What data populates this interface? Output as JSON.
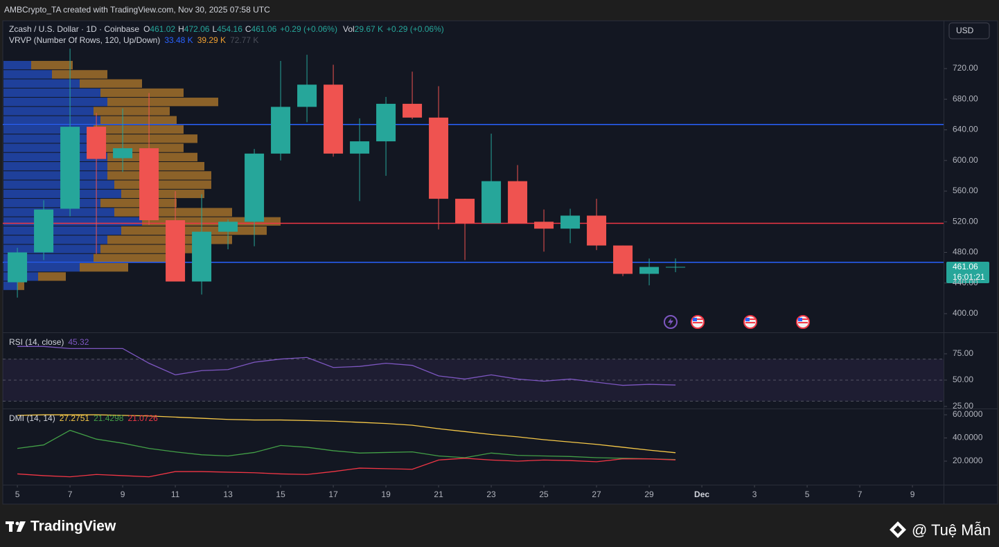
{
  "header": "AMBCrypto_TA created with TradingView.com, Nov 30, 2025 07:58 UTC",
  "footer": {
    "brand": "TradingView",
    "watermark": "@ Tuệ Mẫn"
  },
  "chart_data": [
    {
      "type": "candlestick",
      "title": "Zcash / U.S. Dollar · 1D · Coinbase",
      "currency": "USD",
      "legend": {
        "open_label": "O",
        "high_label": "H",
        "low_label": "L",
        "close_label": "C",
        "change": "+0.29 (+0.06%)",
        "volume_label": "Vol",
        "volume": "29.67 K",
        "volume_change": "+0.29 (+0.06%)"
      },
      "x": [
        5,
        6,
        7,
        8,
        9,
        10,
        11,
        12,
        13,
        14,
        15,
        16,
        17,
        18,
        19,
        20,
        21,
        22,
        23,
        24,
        25,
        26,
        27,
        28,
        29,
        30
      ],
      "open": [
        441,
        480,
        537,
        644,
        603,
        616,
        522,
        442,
        507,
        520,
        609,
        670,
        699,
        609,
        625,
        674,
        656,
        550,
        518,
        573,
        520,
        511,
        528,
        489,
        452,
        461.02
      ],
      "high": [
        486,
        548,
        746,
        662,
        668,
        688,
        560,
        556,
        523,
        615,
        730,
        738,
        725,
        655,
        683,
        716,
        697,
        550,
        635,
        594,
        536,
        537,
        550,
        489,
        472,
        472.06
      ],
      "low": [
        421,
        470,
        527,
        478,
        585,
        516,
        442,
        425,
        484,
        488,
        600,
        650,
        605,
        547,
        580,
        654,
        510,
        470,
        518,
        518,
        481,
        492,
        483,
        449,
        437,
        454.16
      ],
      "close": [
        480,
        536,
        644,
        602,
        616,
        522,
        442,
        507,
        520,
        609,
        670,
        699,
        609,
        625,
        674,
        656,
        550,
        518,
        573,
        518,
        511,
        528,
        489,
        452,
        461,
        461.06
      ],
      "up_color": "#26a69a",
      "down_color": "#ef5350",
      "xlim": [
        4.34,
        40.13
      ],
      "xticks": [
        5,
        7,
        9,
        11,
        13,
        15,
        17,
        19,
        21,
        23,
        25,
        27,
        29,
        {
          "value": 31,
          "label": "Dec"
        },
        {
          "value": 33,
          "label": "3"
        },
        {
          "value": 35,
          "label": "5"
        },
        {
          "value": 37,
          "label": "7"
        },
        {
          "value": 39,
          "label": "9"
        }
      ],
      "ylim": [
        375.6,
        782.4
      ],
      "yticks": [
        {
          "value": 400,
          "label": "400.00"
        },
        {
          "value": 440,
          "label": "440.00"
        },
        {
          "value": 480,
          "label": "480.00"
        },
        {
          "value": 520,
          "label": "520.00"
        },
        {
          "value": 560,
          "label": "560.00"
        },
        {
          "value": 600,
          "label": "600.00"
        },
        {
          "value": 640,
          "label": "640.00"
        },
        {
          "value": 680,
          "label": "680.00"
        },
        {
          "value": 720,
          "label": "720.00"
        }
      ],
      "grid": false,
      "hlines": [
        {
          "value": 647,
          "color": "#2962ff"
        },
        {
          "value": 518,
          "color": "#f23645"
        },
        {
          "value": 467,
          "color": "#2962ff"
        }
      ],
      "countdown": "16:01:21",
      "volume_profile": {
        "title": "VRVP (Number Of Rows, 120, Up/Down)",
        "up_total": "33.48 K",
        "down_total": "39.29 K",
        "total": "72.77 K",
        "up_color": "#2962ff",
        "down_color": "#f0a030",
        "xlim": [
          0,
          1360
        ],
        "bins": [
          430,
          442,
          454,
          466,
          478,
          490,
          502,
          514,
          526,
          538,
          550,
          562,
          574,
          586,
          598,
          610,
          622,
          634,
          646,
          658,
          670,
          682,
          694,
          706,
          718,
          730
        ],
        "up": [
          20,
          50,
          110,
          130,
          140,
          150,
          170,
          200,
          160,
          140,
          170,
          160,
          150,
          150,
          150,
          140,
          140,
          130,
          140,
          130,
          150,
          140,
          110,
          70,
          40
        ],
        "down": [
          10,
          40,
          70,
          110,
          160,
          180,
          210,
          200,
          170,
          110,
          120,
          140,
          150,
          140,
          130,
          120,
          140,
          130,
          110,
          110,
          160,
          120,
          90,
          80,
          60
        ]
      }
    },
    {
      "type": "line",
      "title": "RSI (14, close)",
      "x": [
        5,
        6,
        7,
        8,
        9,
        10,
        11,
        12,
        13,
        14,
        15,
        16,
        17,
        18,
        19,
        20,
        21,
        22,
        23,
        24,
        25,
        26,
        27,
        28,
        29,
        30
      ],
      "series": [
        {
          "color": "#7e57c2",
          "values": [
            82,
            82,
            80,
            80,
            80,
            66,
            55,
            59,
            60,
            67,
            70,
            71.5,
            62,
            63,
            66,
            64,
            54,
            51,
            55,
            51,
            49,
            51,
            48,
            45,
            46,
            45.32
          ]
        }
      ],
      "bands": [
        70,
        50,
        30
      ],
      "xlim": [
        4.34,
        40.13
      ],
      "ylim": [
        23,
        93.4
      ],
      "yticks": [
        {
          "value": 75,
          "label": "75.00"
        },
        {
          "value": 50,
          "label": "50.00"
        },
        {
          "value": 25,
          "label": "25.00"
        }
      ]
    },
    {
      "type": "line",
      "title": "DMI (14, 14)",
      "x": [
        5,
        6,
        7,
        8,
        9,
        10,
        11,
        12,
        13,
        14,
        15,
        16,
        17,
        18,
        19,
        20,
        21,
        22,
        23,
        24,
        25,
        26,
        27,
        28,
        29,
        30
      ],
      "series": [
        {
          "color": "#f7c948",
          "values": [
            59.5,
            60,
            60,
            60,
            59.5,
            59,
            58,
            57,
            56,
            55.5,
            55.5,
            55,
            54.5,
            53.5,
            52.5,
            51,
            48,
            45.5,
            43,
            41,
            38.5,
            36.5,
            34.5,
            32,
            29.5,
            27.2751
          ]
        },
        {
          "color": "#43a047",
          "values": [
            31,
            34,
            46.6,
            39,
            35.5,
            31,
            28,
            25.5,
            24.5,
            27.5,
            33.5,
            32,
            29,
            27,
            27.5,
            28,
            24.5,
            23,
            27,
            25,
            24.5,
            24,
            23,
            22.5,
            22,
            21.4298
          ]
        },
        {
          "color": "#f23645",
          "values": [
            9,
            7.5,
            6.5,
            8.5,
            7.5,
            6.5,
            11,
            11,
            10.5,
            10,
            9,
            8.5,
            11,
            14,
            13.5,
            13,
            21,
            22.5,
            21,
            20,
            21,
            20.5,
            19.5,
            22,
            22,
            21.0726
          ]
        }
      ],
      "xlim": [
        4.34,
        40.13
      ],
      "ylim": [
        -0.3,
        65.4
      ],
      "yticks": [
        {
          "value": 60,
          "label": "60.0000"
        },
        {
          "value": 40,
          "label": "40.0000"
        },
        {
          "value": 20,
          "label": "20.0000"
        }
      ]
    }
  ]
}
